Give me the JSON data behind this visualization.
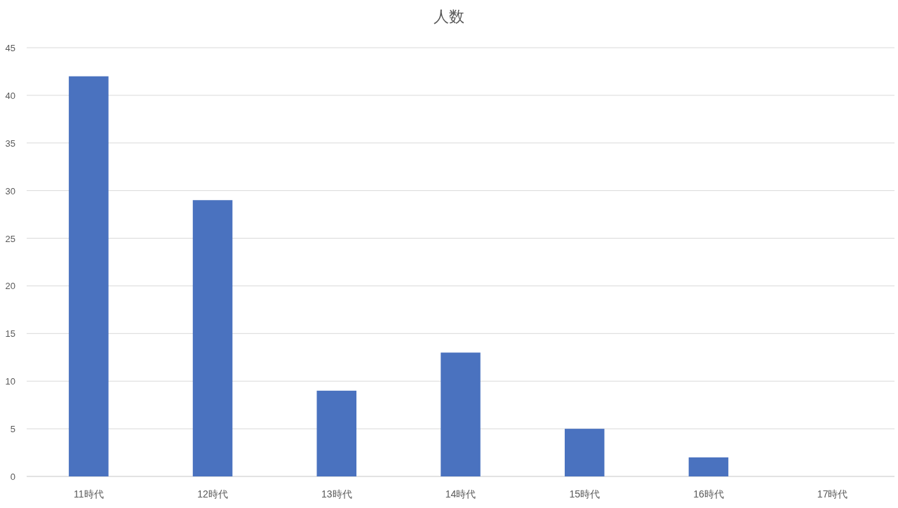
{
  "chart_data": {
    "type": "bar",
    "title": "人数",
    "categories": [
      "11時代",
      "12時代",
      "13時代",
      "14時代",
      "15時代",
      "16時代",
      "17時代"
    ],
    "values": [
      42,
      29,
      9,
      13,
      5,
      2,
      0
    ],
    "color": "#4a72bf",
    "ylim": [
      0,
      45
    ],
    "yticks": [
      0,
      5,
      10,
      15,
      20,
      25,
      30,
      35,
      40,
      45
    ],
    "grid": "y"
  }
}
